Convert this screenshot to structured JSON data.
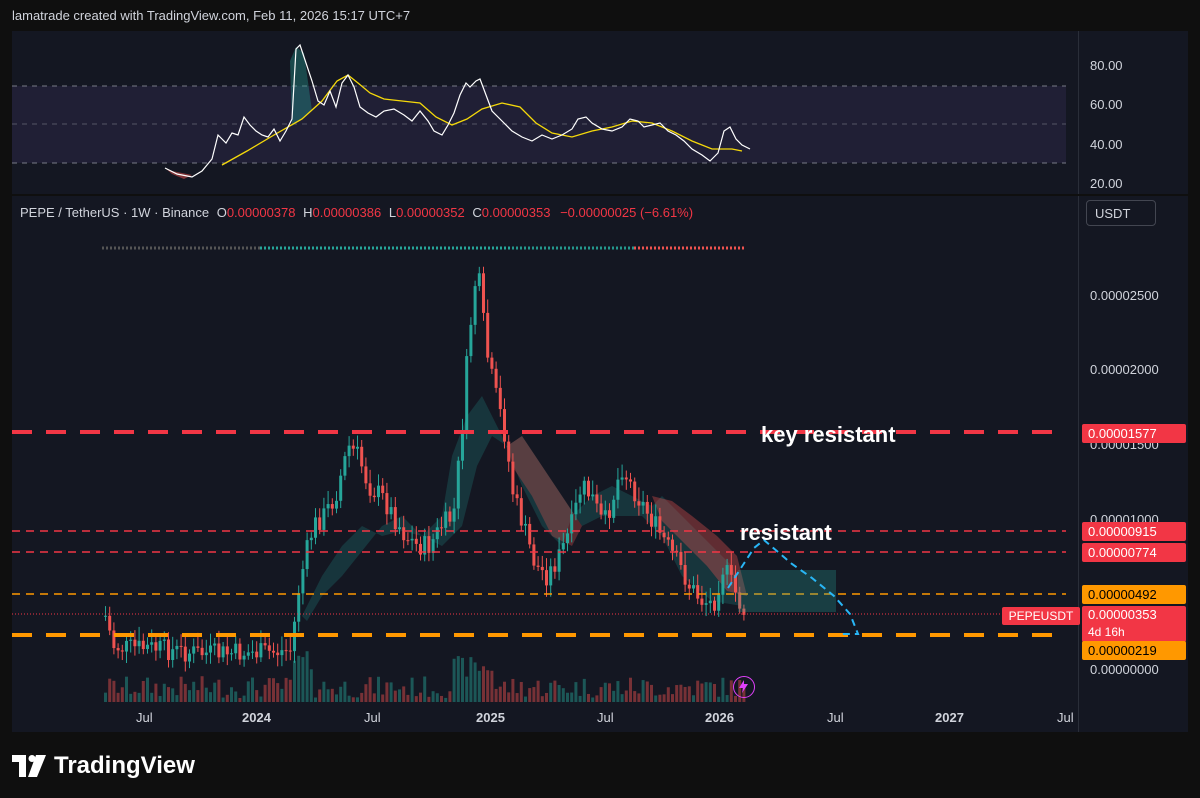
{
  "attribution": "lamatrade created with TradingView.com, Feb 11, 2026 15:17 UTC+7",
  "rsi": {
    "levels": [
      "80.00",
      "60.00",
      "40.00",
      "20.00"
    ]
  },
  "legend": {
    "symbol": "PEPE / TetherUS · 1W · Binance",
    "o_label": "O",
    "o_value": "0.00000378",
    "h_label": "H",
    "h_value": "0.00000386",
    "l_label": "L",
    "l_value": "0.00000352",
    "c_label": "C",
    "c_value": "0.00000353",
    "change": "−0.00000025 (−6.61%)"
  },
  "currency_button": "USDT",
  "price_axis": [
    "0.00002500",
    "0.00002000",
    "0.00001500",
    "0.00001000",
    "0.00000000"
  ],
  "levels": {
    "key_resistance": "0.00001577",
    "resistance_1": "0.00000915",
    "resistance_2": "0.00000774",
    "support_1": "0.00000492",
    "support_2": "0.00000219"
  },
  "current": {
    "symbol": "PEPEUSDT",
    "price": "0.00000353",
    "countdown": "4d 16h"
  },
  "annotations": {
    "key": "key resistant",
    "res": "resistant"
  },
  "time_axis": [
    "Jul",
    "2024",
    "Jul",
    "2025",
    "Jul",
    "2026",
    "Jul",
    "2027",
    "Jul"
  ],
  "brand": "TradingView",
  "colors": {
    "up": "#26a69a",
    "down": "#ef5350",
    "resistance": "#f23645",
    "support": "#ff9800",
    "projection": "#29b6f6",
    "rsi": "#ffffff",
    "rsi_ma": "#f5d90a"
  },
  "icons": {
    "logo": "tradingview-logo-icon",
    "flash": "lightning-icon"
  }
}
